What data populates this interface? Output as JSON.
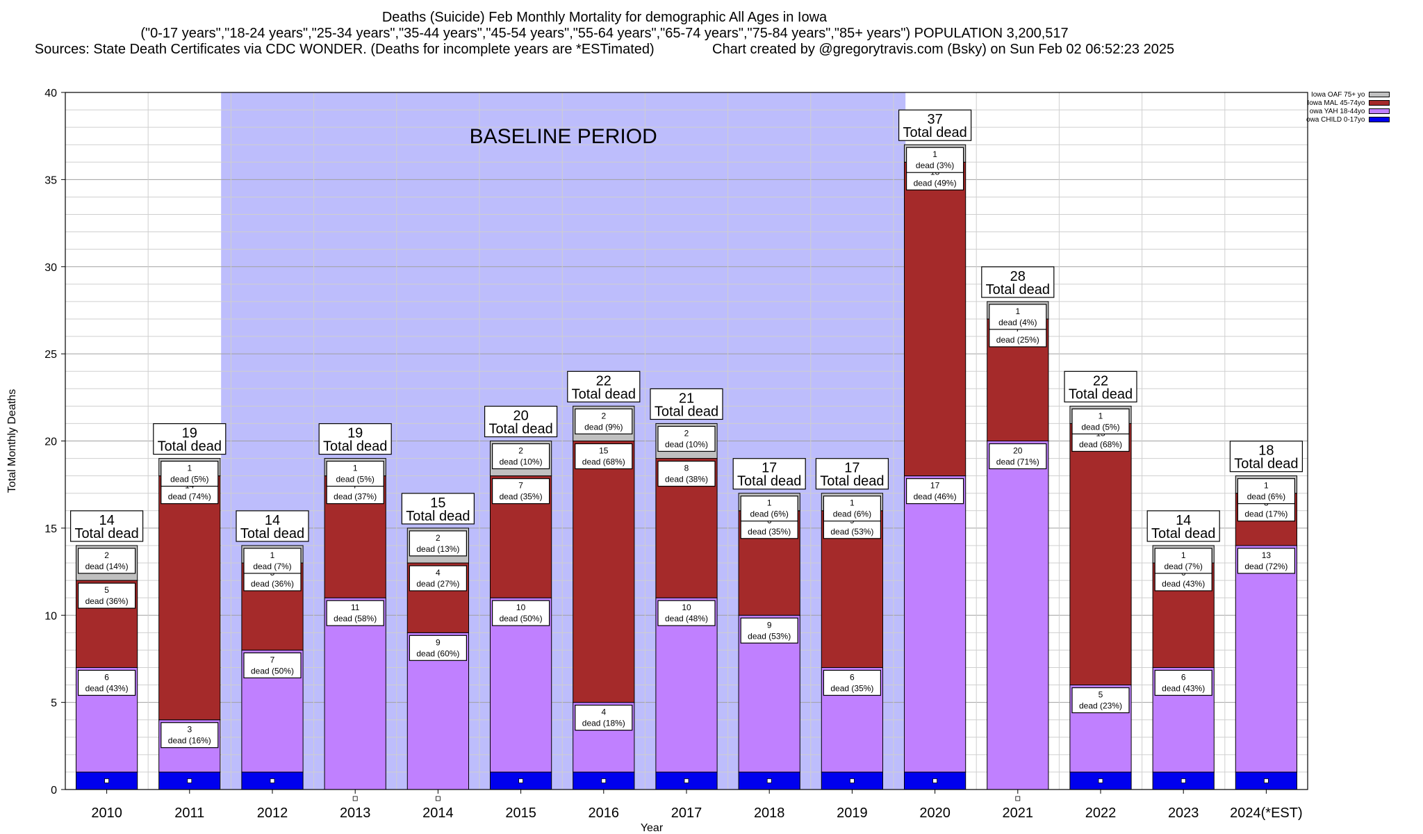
{
  "title_lines": [
    "Deaths (Suicide) Feb Monthly Mortality for demographic All Ages in Iowa",
    "(\"0-17 years\",\"18-24 years\",\"25-34 years\",\"35-44 years\",\"45-54 years\",\"55-64 years\",\"65-74 years\",\"75-84 years\",\"85+ years\") POPULATION 3,200,517",
    "Sources: State Death Certificates via CDC WONDER. (Deaths for incomplete years are *ESTimated)               Chart created by @gregorytravis.com (Bsky) on Sun Feb 02 06:52:23 2025"
  ],
  "chart_data": {
    "type": "bar",
    "stacked": true,
    "xlabel": "Year",
    "ylabel": "Total Monthly Deaths",
    "ylim": [
      0,
      40
    ],
    "yticks": [
      "0",
      "5",
      "10",
      "15",
      "20",
      "25",
      "30",
      "35",
      "40"
    ],
    "grid": true,
    "legend_position": "top-right",
    "categories": [
      "2010",
      "2011",
      "2012",
      "2013",
      "2014",
      "2015",
      "2016",
      "2017",
      "2018",
      "2019",
      "2020",
      "2021",
      "2022",
      "2023",
      "2024(*EST)"
    ],
    "baseline": {
      "label": "BASELINE PERIOD",
      "from": "2012",
      "to": "2019",
      "color": "#bdbdfc"
    },
    "total_suffix": "Total dead",
    "totals": [
      14,
      19,
      14,
      19,
      15,
      20,
      22,
      21,
      17,
      17,
      37,
      28,
      22,
      14,
      18
    ],
    "series": [
      {
        "name": "owa CHILD 0-17yo",
        "color": "#0000ee",
        "values": [
          1,
          1,
          1,
          0,
          0,
          1,
          1,
          1,
          1,
          1,
          1,
          0,
          1,
          1,
          1
        ]
      },
      {
        "name": "owa YAH 18-44yo",
        "color": "#c080ff",
        "values": [
          6,
          3,
          7,
          11,
          9,
          10,
          4,
          10,
          9,
          6,
          17,
          20,
          5,
          6,
          13
        ],
        "labels": [
          "dead (43%)",
          "dead (16%)",
          "dead (50%)",
          "dead (58%)",
          "dead (60%)",
          "dead (50%)",
          "dead (18%)",
          "dead (48%)",
          "dead (53%)",
          "dead (35%)",
          "dead (46%)",
          "dead (71%)",
          "dead (23%)",
          "dead (43%)",
          "dead (72%)"
        ]
      },
      {
        "name": "Iowa MAL 45-74yo",
        "color": "#a52a2a",
        "values": [
          5,
          14,
          5,
          7,
          4,
          7,
          15,
          8,
          6,
          9,
          18,
          7,
          15,
          6,
          3
        ],
        "labels": [
          "dead (36%)",
          "dead (74%)",
          "dead (36%)",
          "dead (37%)",
          "dead (27%)",
          "dead (35%)",
          "dead (68%)",
          "dead (38%)",
          "dead (35%)",
          "dead (53%)",
          "dead (49%)",
          "dead (25%)",
          "dead (68%)",
          "dead (43%)",
          "dead (17%)"
        ]
      },
      {
        "name": "Iowa OAF 75+ yo",
        "color": "#c0c0c0",
        "values": [
          2,
          1,
          1,
          1,
          2,
          2,
          2,
          2,
          1,
          1,
          1,
          1,
          1,
          1,
          1
        ],
        "labels": [
          "dead (14%)",
          "dead (5%)",
          "dead (7%)",
          "dead (5%)",
          "dead (13%)",
          "dead (10%)",
          "dead (9%)",
          "dead (10%)",
          "dead (6%)",
          "dead (6%)",
          "dead (3%)",
          "dead (4%)",
          "dead (5%)",
          "dead (7%)",
          "dead (6%)"
        ]
      }
    ],
    "legend_order": [
      "Iowa OAF 75+ yo",
      "Iowa MAL 45-74yo",
      "owa YAH 18-44yo",
      "owa CHILD 0-17yo"
    ]
  }
}
